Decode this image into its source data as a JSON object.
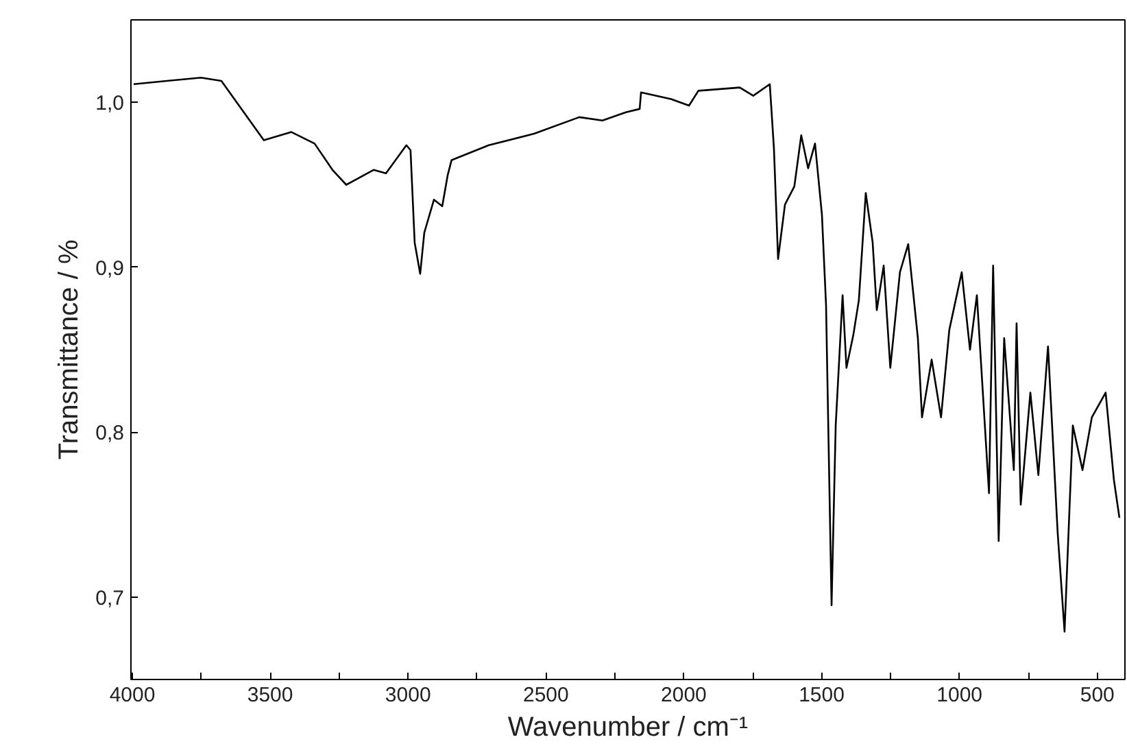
{
  "chart_data": {
    "type": "line",
    "xlabel": "Wavenumber / cm⁻¹",
    "ylabel": "Transmittance / %",
    "xlim": [
      4005,
      400
    ],
    "ylim": [
      0.65,
      1.05
    ],
    "xticks": [
      4000,
      {
        "value": 3750,
        "label": null
      },
      3500,
      {
        "value": 3250,
        "label": null
      },
      3000,
      {
        "value": 2750,
        "label": null
      },
      2500,
      {
        "value": 2250,
        "label": null
      },
      2000,
      {
        "value": 1750,
        "label": null
      },
      1500,
      {
        "value": 1250,
        "label": null
      },
      1000,
      {
        "value": 750,
        "label": null
      },
      500
    ],
    "yticks": [
      {
        "value": 0.7,
        "label": "0,7"
      },
      {
        "value": 0.8,
        "label": "0,8"
      },
      {
        "value": 0.9,
        "label": "0,9"
      },
      {
        "value": 1.0,
        "label": "1,0"
      }
    ],
    "grid": false,
    "marker": "none",
    "line_style": "solid",
    "series": [
      {
        "color": "#000000",
        "x": [
          3995,
          3751,
          3677,
          3523,
          3423,
          3339,
          3274,
          3224,
          3125,
          3080,
          3006,
          2991,
          2976,
          2956,
          2941,
          2906,
          2876,
          2856,
          2842,
          2707,
          2543,
          2379,
          2295,
          2210,
          2160,
          2155,
          2046,
          1981,
          1947,
          1797,
          1748,
          1688,
          1673,
          1658,
          1633,
          1599,
          1574,
          1549,
          1524,
          1499,
          1484,
          1464,
          1449,
          1424,
          1410,
          1385,
          1365,
          1340,
          1315,
          1300,
          1275,
          1251,
          1216,
          1186,
          1151,
          1136,
          1101,
          1067,
          1037,
          992,
          962,
          937,
          893,
          878,
          858,
          838,
          803,
          793,
          778,
          743,
          714,
          679,
          644,
          619,
          589,
          554,
          520,
          470,
          440,
          420
        ],
        "values": [
          1.011,
          1.015,
          1.013,
          0.977,
          0.982,
          0.975,
          0.959,
          0.95,
          0.959,
          0.957,
          0.974,
          0.971,
          0.915,
          0.896,
          0.921,
          0.941,
          0.937,
          0.956,
          0.965,
          0.974,
          0.981,
          0.991,
          0.989,
          0.994,
          0.996,
          1.006,
          1.002,
          0.998,
          1.007,
          1.009,
          1.004,
          1.011,
          0.972,
          0.905,
          0.938,
          0.949,
          0.98,
          0.96,
          0.975,
          0.932,
          0.877,
          0.695,
          0.804,
          0.883,
          0.839,
          0.859,
          0.88,
          0.945,
          0.915,
          0.874,
          0.901,
          0.839,
          0.897,
          0.914,
          0.857,
          0.809,
          0.844,
          0.809,
          0.862,
          0.897,
          0.85,
          0.883,
          0.763,
          0.901,
          0.734,
          0.857,
          0.777,
          0.866,
          0.756,
          0.824,
          0.774,
          0.852,
          0.739,
          0.679,
          0.804,
          0.777,
          0.809,
          0.824,
          0.771,
          0.748
        ]
      }
    ]
  }
}
